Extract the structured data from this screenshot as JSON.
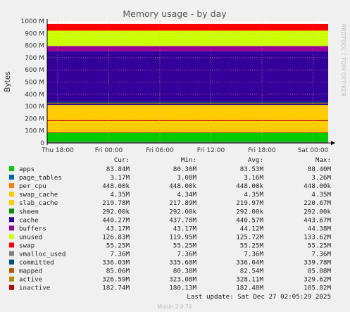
{
  "title": "Memory usage - by day",
  "sidebar_text": "RRDTOOL / TOBI OETIKER",
  "footer": "Munin 2.0.76",
  "last_update": "Last update: Sat Dec 27 02:05:29 2025",
  "legend_headers": {
    "cur": "Cur:",
    "min": "Min:",
    "avg": "Avg:",
    "max": "Max:"
  },
  "legend": [
    {
      "name": "apps",
      "color": "#00cc00",
      "cur": "83.84M",
      "min": "80.30M",
      "avg": "83.53M",
      "max": "88.40M"
    },
    {
      "name": "page_tables",
      "color": "#0066b3",
      "cur": "3.17M",
      "min": "3.08M",
      "avg": "3.16M",
      "max": "3.26M"
    },
    {
      "name": "per_cpu",
      "color": "#ff8000",
      "cur": "448.00k",
      "min": "448.00k",
      "avg": "448.00k",
      "max": "448.00k"
    },
    {
      "name": "swap_cache",
      "color": "#ffcc00",
      "cur": "4.35M",
      "min": "4.34M",
      "avg": "4.35M",
      "max": "4.35M"
    },
    {
      "name": "slab_cache",
      "color": "#ffcc00",
      "cur": "219.78M",
      "min": "217.89M",
      "avg": "219.97M",
      "max": "220.67M"
    },
    {
      "name": "shmem",
      "color": "#008f00",
      "cur": "292.00k",
      "min": "292.00k",
      "avg": "292.00k",
      "max": "292.00k"
    },
    {
      "name": "cache",
      "color": "#330099",
      "cur": "440.27M",
      "min": "437.78M",
      "avg": "440.57M",
      "max": "443.67M"
    },
    {
      "name": "buffers",
      "color": "#990099",
      "cur": "43.17M",
      "min": "43.17M",
      "avg": "44.12M",
      "max": "44.38M"
    },
    {
      "name": "unused",
      "color": "#ccff00",
      "cur": "126.83M",
      "min": "119.95M",
      "avg": "125.72M",
      "max": "133.62M"
    },
    {
      "name": "swap",
      "color": "#ff0000",
      "cur": "55.25M",
      "min": "55.25M",
      "avg": "55.25M",
      "max": "55.25M"
    },
    {
      "name": "vmalloc_used",
      "color": "#808080",
      "cur": "7.36M",
      "min": "7.36M",
      "avg": "7.36M",
      "max": "7.36M"
    },
    {
      "name": "committed",
      "color": "#004d80",
      "cur": "336.03M",
      "min": "335.68M",
      "avg": "336.04M",
      "max": "339.78M"
    },
    {
      "name": "mapped",
      "color": "#b35a00",
      "cur": "85.06M",
      "min": "80.38M",
      "avg": "82.54M",
      "max": "85.08M"
    },
    {
      "name": "active",
      "color": "#b38f00",
      "cur": "326.59M",
      "min": "323.08M",
      "avg": "328.11M",
      "max": "329.62M"
    },
    {
      "name": "inactive",
      "color": "#b30000",
      "cur": "182.74M",
      "min": "180.13M",
      "avg": "182.48M",
      "max": "185.82M"
    }
  ],
  "chart_data": {
    "type": "area",
    "title": "Memory usage - by day",
    "ylabel": "Bytes",
    "xlabel": "",
    "ylim": [
      0,
      1000
    ],
    "yunit": "M",
    "yticks": [
      "0",
      "100 M",
      "200 M",
      "300 M",
      "400 M",
      "500 M",
      "600 M",
      "700 M",
      "800 M",
      "900 M",
      "1000 M"
    ],
    "xticks": [
      "Thu 18:00",
      "Fri 00:00",
      "Fri 06:00",
      "Fri 12:00",
      "Fri 18:00",
      "Sat 00:00"
    ],
    "grid": true,
    "stacked_series": [
      {
        "name": "apps",
        "value": 83.84,
        "color": "#00cc00"
      },
      {
        "name": "page_tables",
        "value": 3.17,
        "color": "#0066b3"
      },
      {
        "name": "per_cpu",
        "value": 0.448,
        "color": "#ff8000"
      },
      {
        "name": "swap_cache",
        "value": 4.35,
        "color": "#ffcc00"
      },
      {
        "name": "slab_cache",
        "value": 219.78,
        "color": "#ffcc00"
      },
      {
        "name": "shmem",
        "value": 0.292,
        "color": "#008f00"
      },
      {
        "name": "cache",
        "value": 440.27,
        "color": "#330099"
      },
      {
        "name": "buffers",
        "value": 43.17,
        "color": "#990099"
      },
      {
        "name": "unused",
        "value": 126.83,
        "color": "#ccff00"
      },
      {
        "name": "swap",
        "value": 55.25,
        "color": "#ff0000"
      }
    ],
    "line_series": [
      {
        "name": "vmalloc_used",
        "value": 7.36,
        "color": "#808080"
      },
      {
        "name": "committed",
        "value": 336.03,
        "color": "#004d80"
      },
      {
        "name": "mapped",
        "value": 85.06,
        "color": "#b35a00"
      },
      {
        "name": "active",
        "value": 326.59,
        "color": "#b38f00"
      },
      {
        "name": "inactive",
        "value": 182.74,
        "color": "#b30000"
      }
    ]
  }
}
